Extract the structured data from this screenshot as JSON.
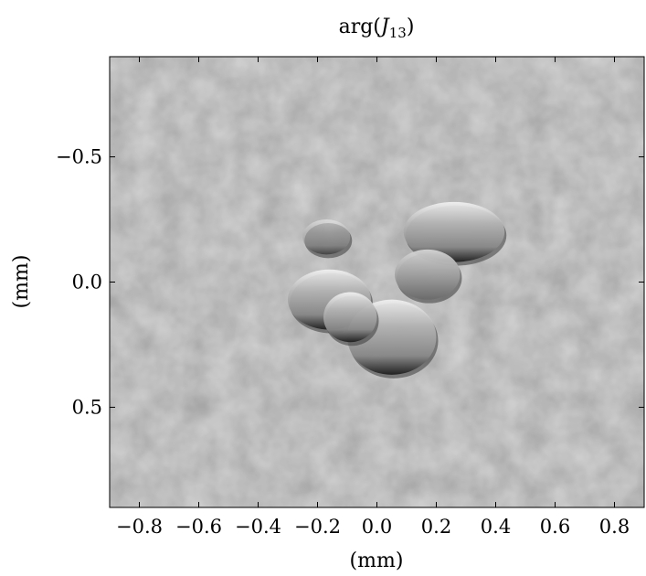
{
  "chart_data": {
    "type": "heatmap",
    "title_base": "arg(",
    "title_symbol": "J",
    "title_subscript": "13",
    "title_close": ")",
    "xlabel": "(mm)",
    "ylabel": "(mm)",
    "xlim": [
      -0.9,
      0.9
    ],
    "ylim": [
      0.9,
      -0.9
    ],
    "y_inverted": true,
    "xticks": [
      -0.8,
      -0.6,
      -0.4,
      -0.2,
      0.0,
      0.2,
      0.4,
      0.6,
      0.8
    ],
    "xtick_labels": [
      "−0.8",
      "−0.6",
      "−0.4",
      "−0.2",
      "0.0",
      "0.2",
      "0.4",
      "0.6",
      "0.8"
    ],
    "yticks": [
      -0.5,
      0.0,
      0.5
    ],
    "ytick_labels": [
      "−0.5",
      "0.0",
      "0.5"
    ],
    "colormap": "grayscale",
    "background_gray": "#9a9a9a",
    "features": [
      {
        "shape": "ellipse",
        "cx": 0.26,
        "cy": -0.2,
        "rx": 0.17,
        "ry": 0.12
      },
      {
        "shape": "ellipse",
        "cx": 0.17,
        "cy": -0.03,
        "rx": 0.11,
        "ry": 0.1
      },
      {
        "shape": "ellipse",
        "cx": -0.17,
        "cy": -0.18,
        "rx": 0.08,
        "ry": 0.07
      },
      {
        "shape": "ellipse",
        "cx": -0.16,
        "cy": 0.07,
        "rx": 0.14,
        "ry": 0.12
      },
      {
        "shape": "ellipse",
        "cx": 0.05,
        "cy": 0.22,
        "rx": 0.15,
        "ry": 0.15
      },
      {
        "shape": "ellipse",
        "cx": -0.09,
        "cy": 0.14,
        "rx": 0.09,
        "ry": 0.1
      }
    ]
  }
}
